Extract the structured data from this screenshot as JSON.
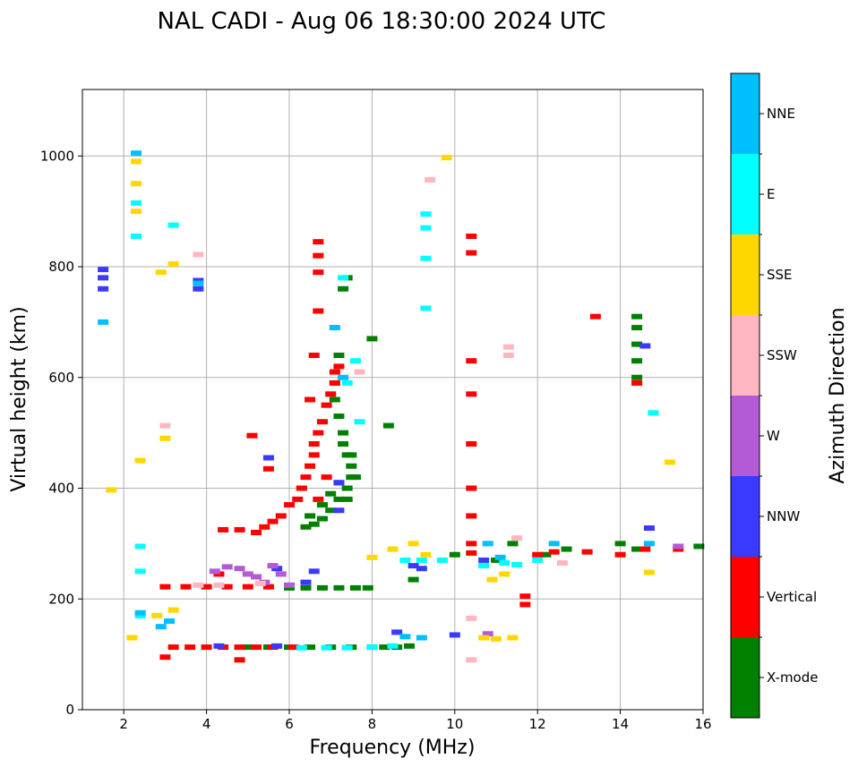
{
  "chart_data": {
    "type": "scatter",
    "title": "NAL CADI - Aug 06 18:30:00 2024 UTC",
    "xlabel": "Frequency (MHz)",
    "ylabel": "Virtual height (km)",
    "xlim": [
      1,
      16
    ],
    "ylim": [
      0,
      1120
    ],
    "xticks": [
      2,
      4,
      6,
      8,
      10,
      12,
      14,
      16
    ],
    "yticks": [
      0,
      200,
      400,
      600,
      800,
      1000
    ],
    "grid": true,
    "colorbar": {
      "label": "Azimuth Direction",
      "categories": [
        {
          "name": "X-mode",
          "color": "#008000"
        },
        {
          "name": "Vertical",
          "color": "#ff0000"
        },
        {
          "name": "NNW",
          "color": "#3a3aff"
        },
        {
          "name": "W",
          "color": "#b55ad6"
        },
        {
          "name": "SSW",
          "color": "#ffb6c1"
        },
        {
          "name": "SSE",
          "color": "#ffd700"
        },
        {
          "name": "E",
          "color": "#00ffff"
        },
        {
          "name": "NNE",
          "color": "#00bfff"
        }
      ]
    },
    "series": [
      {
        "name": "X-mode",
        "points": [
          [
            5.0,
            113
          ],
          [
            5.5,
            113
          ],
          [
            6.0,
            113
          ],
          [
            6.5,
            113
          ],
          [
            7.0,
            113
          ],
          [
            7.5,
            113
          ],
          [
            8.0,
            113
          ],
          [
            8.3,
            113
          ],
          [
            8.6,
            113
          ],
          [
            8.9,
            115
          ],
          [
            6.0,
            220
          ],
          [
            6.4,
            220
          ],
          [
            6.8,
            220
          ],
          [
            7.2,
            220
          ],
          [
            7.6,
            220
          ],
          [
            7.9,
            220
          ],
          [
            6.4,
            330
          ],
          [
            6.6,
            335
          ],
          [
            6.8,
            345
          ],
          [
            7.0,
            360
          ],
          [
            7.2,
            380
          ],
          [
            7.4,
            400
          ],
          [
            7.5,
            420
          ],
          [
            7.5,
            440
          ],
          [
            7.4,
            460
          ],
          [
            7.3,
            480
          ],
          [
            7.3,
            500
          ],
          [
            7.2,
            530
          ],
          [
            7.1,
            560
          ],
          [
            7.1,
            590
          ],
          [
            6.5,
            350
          ],
          [
            6.8,
            370
          ],
          [
            7.0,
            390
          ],
          [
            7.2,
            410
          ],
          [
            7.4,
            380
          ],
          [
            7.6,
            420
          ],
          [
            7.5,
            460
          ],
          [
            7.2,
            640
          ],
          [
            7.3,
            760
          ],
          [
            7.4,
            780
          ],
          [
            8.0,
            670
          ],
          [
            9.0,
            235
          ],
          [
            10.0,
            280
          ],
          [
            11.0,
            270
          ],
          [
            11.4,
            300
          ],
          [
            12.2,
            280
          ],
          [
            12.7,
            290
          ],
          [
            14.0,
            300
          ],
          [
            14.4,
            290
          ],
          [
            15.9,
            295
          ],
          [
            14.4,
            600
          ],
          [
            14.4,
            630
          ],
          [
            14.4,
            660
          ],
          [
            14.4,
            690
          ],
          [
            14.4,
            710
          ],
          [
            8.4,
            513
          ]
        ]
      },
      {
        "name": "Vertical",
        "points": [
          [
            3.2,
            113
          ],
          [
            3.6,
            113
          ],
          [
            4.0,
            113
          ],
          [
            4.4,
            113
          ],
          [
            4.8,
            113
          ],
          [
            5.2,
            113
          ],
          [
            5.6,
            113
          ],
          [
            6.1,
            113
          ],
          [
            3.0,
            95
          ],
          [
            4.8,
            90
          ],
          [
            3.0,
            222
          ],
          [
            3.5,
            222
          ],
          [
            4.0,
            222
          ],
          [
            4.5,
            222
          ],
          [
            5.0,
            222
          ],
          [
            5.5,
            222
          ],
          [
            4.4,
            325
          ],
          [
            4.8,
            325
          ],
          [
            5.2,
            320
          ],
          [
            5.4,
            330
          ],
          [
            5.6,
            340
          ],
          [
            5.8,
            350
          ],
          [
            6.0,
            370
          ],
          [
            6.2,
            380
          ],
          [
            6.3,
            400
          ],
          [
            6.4,
            420
          ],
          [
            6.5,
            440
          ],
          [
            6.6,
            460
          ],
          [
            6.6,
            480
          ],
          [
            6.7,
            500
          ],
          [
            6.8,
            520
          ],
          [
            6.9,
            550
          ],
          [
            7.0,
            570
          ],
          [
            7.1,
            590
          ],
          [
            6.7,
            380
          ],
          [
            6.9,
            420
          ],
          [
            6.5,
            560
          ],
          [
            6.6,
            640
          ],
          [
            6.7,
            720
          ],
          [
            6.7,
            790
          ],
          [
            6.7,
            820
          ],
          [
            6.7,
            845
          ],
          [
            7.1,
            610
          ],
          [
            7.2,
            620
          ],
          [
            10.4,
            283
          ],
          [
            10.4,
            300
          ],
          [
            10.4,
            350
          ],
          [
            10.4,
            400
          ],
          [
            10.4,
            480
          ],
          [
            10.4,
            570
          ],
          [
            10.4,
            630
          ],
          [
            10.4,
            825
          ],
          [
            10.4,
            855
          ],
          [
            11.7,
            190
          ],
          [
            11.7,
            205
          ],
          [
            12.0,
            280
          ],
          [
            12.4,
            285
          ],
          [
            13.2,
            285
          ],
          [
            13.4,
            710
          ],
          [
            14.0,
            280
          ],
          [
            14.4,
            590
          ],
          [
            14.6,
            290
          ],
          [
            15.4,
            290
          ],
          [
            5.1,
            495
          ],
          [
            5.5,
            435
          ],
          [
            4.3,
            245
          ]
        ]
      },
      {
        "name": "NNW",
        "points": [
          [
            1.5,
            760
          ],
          [
            1.5,
            780
          ],
          [
            1.5,
            795
          ],
          [
            3.8,
            760
          ],
          [
            3.8,
            775
          ],
          [
            4.3,
            115
          ],
          [
            5.7,
            115
          ],
          [
            6.4,
            230
          ],
          [
            6.6,
            250
          ],
          [
            7.2,
            360
          ],
          [
            7.2,
            410
          ],
          [
            8.6,
            140
          ],
          [
            9.0,
            260
          ],
          [
            9.2,
            255
          ],
          [
            10.0,
            135
          ],
          [
            10.7,
            270
          ],
          [
            14.7,
            328
          ],
          [
            14.6,
            657
          ],
          [
            5.5,
            455
          ],
          [
            5.7,
            255
          ]
        ]
      },
      {
        "name": "W",
        "points": [
          [
            4.2,
            250
          ],
          [
            4.5,
            258
          ],
          [
            4.8,
            255
          ],
          [
            5.0,
            245
          ],
          [
            5.2,
            240
          ],
          [
            5.4,
            230
          ],
          [
            5.6,
            260
          ],
          [
            5.8,
            245
          ],
          [
            6.0,
            225
          ],
          [
            10.8,
            137
          ],
          [
            15.4,
            295
          ]
        ]
      },
      {
        "name": "SSW",
        "points": [
          [
            3.8,
            225
          ],
          [
            4.3,
            225
          ],
          [
            5.3,
            228
          ],
          [
            11.3,
            640
          ],
          [
            11.3,
            655
          ],
          [
            11.5,
            310
          ],
          [
            12.6,
            265
          ],
          [
            10.4,
            90
          ],
          [
            10.4,
            165
          ],
          [
            3.0,
            513
          ],
          [
            3.8,
            822
          ],
          [
            9.4,
            957
          ],
          [
            7.7,
            610
          ]
        ]
      },
      {
        "name": "SSE",
        "points": [
          [
            2.3,
            900
          ],
          [
            2.3,
            950
          ],
          [
            2.3,
            990
          ],
          [
            2.9,
            790
          ],
          [
            3.2,
            805
          ],
          [
            3.0,
            490
          ],
          [
            2.4,
            450
          ],
          [
            1.7,
            397
          ],
          [
            2.2,
            130
          ],
          [
            2.8,
            170
          ],
          [
            3.2,
            180
          ],
          [
            8.5,
            290
          ],
          [
            9.0,
            300
          ],
          [
            9.3,
            280
          ],
          [
            10.7,
            130
          ],
          [
            11.0,
            128
          ],
          [
            11.4,
            130
          ],
          [
            10.9,
            235
          ],
          [
            11.2,
            245
          ],
          [
            14.7,
            248
          ],
          [
            15.2,
            447
          ],
          [
            9.8,
            997
          ],
          [
            8.0,
            275
          ]
        ]
      },
      {
        "name": "E",
        "points": [
          [
            2.3,
            855
          ],
          [
            2.3,
            915
          ],
          [
            3.2,
            875
          ],
          [
            2.4,
            250
          ],
          [
            2.4,
            295
          ],
          [
            2.4,
            170
          ],
          [
            6.3,
            112
          ],
          [
            6.9,
            112
          ],
          [
            7.4,
            112
          ],
          [
            8.0,
            113
          ],
          [
            8.5,
            115
          ],
          [
            8.8,
            270
          ],
          [
            9.2,
            270
          ],
          [
            9.7,
            270
          ],
          [
            10.7,
            260
          ],
          [
            11.2,
            265
          ],
          [
            11.5,
            262
          ],
          [
            12.0,
            270
          ],
          [
            9.3,
            725
          ],
          [
            9.3,
            815
          ],
          [
            9.3,
            870
          ],
          [
            9.3,
            895
          ],
          [
            14.8,
            536
          ],
          [
            7.3,
            780
          ],
          [
            7.6,
            630
          ],
          [
            7.4,
            590
          ],
          [
            7.7,
            520
          ]
        ]
      },
      {
        "name": "NNE",
        "points": [
          [
            1.5,
            700
          ],
          [
            2.3,
            1005
          ],
          [
            2.4,
            175
          ],
          [
            3.8,
            770
          ],
          [
            7.1,
            690
          ],
          [
            7.3,
            600
          ],
          [
            8.8,
            132
          ],
          [
            9.2,
            130
          ],
          [
            10.8,
            300
          ],
          [
            11.1,
            275
          ],
          [
            12.4,
            300
          ],
          [
            14.7,
            300
          ],
          [
            2.9,
            150
          ],
          [
            3.1,
            160
          ]
        ]
      }
    ]
  }
}
